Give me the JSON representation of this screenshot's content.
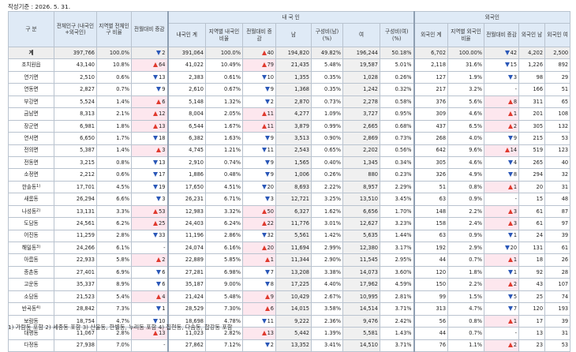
{
  "caption": "작성기준 : 2026. 5. 31.",
  "footnote": "1) 가람동 포함  2) 세종동 포함  3) 산울동, 한별동, 누리동 포함  4) 집현동, 다솜동, 합강동 포함",
  "headers": {
    "gubun": "구  분",
    "total_pop": "전체인구 (내국인+외국인)",
    "region_ratio": "지역별 전체인구 비율",
    "change": "전월대비 증감",
    "domestic_group": "내 국 인",
    "foreign_group": "외국인",
    "dom_total": "내국인 계",
    "dom_ratio": "지역별 내국인 비율",
    "dom_change": "전월대비 증 감",
    "dom_male": "남",
    "dom_male_pct": "구성비(남) (%)",
    "dom_female": "여",
    "dom_female_pct": "구성비(여) (%)",
    "for_total": "외국인 계",
    "for_ratio": "지역별 외국인 비율",
    "for_change": "전월대비 증감",
    "for_male": "외국인 남",
    "for_female": "외국인 여"
  },
  "rows": [
    {
      "name": "계",
      "total": "397,766",
      "ratio": "100.0%",
      "chg": {
        "dir": "down",
        "val": "2"
      },
      "dtot": "391,064",
      "dratio": "100.0%",
      "dchg": {
        "dir": "up",
        "val": "40"
      },
      "m": "194,820",
      "mp": "49.82%",
      "f": "196,244",
      "fp": "50.18%",
      "ftot": "6,702",
      "fratio": "100.00%",
      "fchg": {
        "dir": "down",
        "val": "42"
      },
      "fm": "4,202",
      "ff": "2,500"
    },
    {
      "name": "조치원읍",
      "total": "43,140",
      "ratio": "10.8%",
      "chg": {
        "dir": "up",
        "val": "64"
      },
      "dtot": "41,022",
      "dratio": "10.49%",
      "dchg": {
        "dir": "up",
        "val": "79"
      },
      "m": "21,435",
      "mp": "5.48%",
      "f": "19,587",
      "fp": "5.01%",
      "ftot": "2,118",
      "fratio": "31.6%",
      "fchg": {
        "dir": "down",
        "val": "15"
      },
      "fm": "1,226",
      "ff": "892"
    },
    {
      "name": "연기면",
      "total": "2,510",
      "ratio": "0.6%",
      "chg": {
        "dir": "down",
        "val": "13"
      },
      "dtot": "2,383",
      "dratio": "0.61%",
      "dchg": {
        "dir": "down",
        "val": "10"
      },
      "m": "1,355",
      "mp": "0.35%",
      "f": "1,028",
      "fp": "0.26%",
      "ftot": "127",
      "fratio": "1.9%",
      "fchg": {
        "dir": "down",
        "val": "3"
      },
      "fm": "98",
      "ff": "29"
    },
    {
      "name": "연동면",
      "total": "2,827",
      "ratio": "0.7%",
      "chg": {
        "dir": "down",
        "val": "9"
      },
      "dtot": "2,610",
      "dratio": "0.67%",
      "dchg": {
        "dir": "down",
        "val": "9"
      },
      "m": "1,368",
      "mp": "0.35%",
      "f": "1,242",
      "fp": "0.32%",
      "ftot": "217",
      "fratio": "3.2%",
      "fchg": {
        "dir": "none",
        "val": "-"
      },
      "fm": "166",
      "ff": "51"
    },
    {
      "name": "부강면",
      "total": "5,524",
      "ratio": "1.4%",
      "chg": {
        "dir": "up",
        "val": "6"
      },
      "dtot": "5,148",
      "dratio": "1.32%",
      "dchg": {
        "dir": "down",
        "val": "2"
      },
      "m": "2,870",
      "mp": "0.73%",
      "f": "2,278",
      "fp": "0.58%",
      "ftot": "376",
      "fratio": "5.6%",
      "fchg": {
        "dir": "up",
        "val": "8"
      },
      "fm": "311",
      "ff": "65"
    },
    {
      "name": "금남면",
      "total": "8,313",
      "ratio": "2.1%",
      "chg": {
        "dir": "up",
        "val": "12"
      },
      "dtot": "8,004",
      "dratio": "2.05%",
      "dchg": {
        "dir": "up",
        "val": "11"
      },
      "m": "4,277",
      "mp": "1.09%",
      "f": "3,727",
      "fp": "0.95%",
      "ftot": "309",
      "fratio": "4.6%",
      "fchg": {
        "dir": "up",
        "val": "1"
      },
      "fm": "201",
      "ff": "108"
    },
    {
      "name": "장군면",
      "total": "6,981",
      "ratio": "1.8%",
      "chg": {
        "dir": "up",
        "val": "13"
      },
      "dtot": "6,544",
      "dratio": "1.67%",
      "dchg": {
        "dir": "up",
        "val": "11"
      },
      "m": "3,879",
      "mp": "0.99%",
      "f": "2,665",
      "fp": "0.68%",
      "ftot": "437",
      "fratio": "6.5%",
      "fchg": {
        "dir": "up",
        "val": "2"
      },
      "fm": "305",
      "ff": "132"
    },
    {
      "name": "연서면",
      "total": "6,650",
      "ratio": "1.7%",
      "chg": {
        "dir": "down",
        "val": "18"
      },
      "dtot": "6,382",
      "dratio": "1.63%",
      "dchg": {
        "dir": "down",
        "val": "9"
      },
      "m": "3,513",
      "mp": "0.90%",
      "f": "2,869",
      "fp": "0.73%",
      "ftot": "268",
      "fratio": "4.0%",
      "fchg": {
        "dir": "down",
        "val": "9"
      },
      "fm": "215",
      "ff": "53"
    },
    {
      "name": "전의면",
      "total": "5,387",
      "ratio": "1.4%",
      "chg": {
        "dir": "up",
        "val": "3"
      },
      "dtot": "4,745",
      "dratio": "1.21%",
      "dchg": {
        "dir": "down",
        "val": "11"
      },
      "m": "2,543",
      "mp": "0.65%",
      "f": "2,202",
      "fp": "0.56%",
      "ftot": "642",
      "fratio": "9.6%",
      "fchg": {
        "dir": "up",
        "val": "14"
      },
      "fm": "519",
      "ff": "123"
    },
    {
      "name": "전동면",
      "total": "3,215",
      "ratio": "0.8%",
      "chg": {
        "dir": "down",
        "val": "13"
      },
      "dtot": "2,910",
      "dratio": "0.74%",
      "dchg": {
        "dir": "down",
        "val": "9"
      },
      "m": "1,565",
      "mp": "0.40%",
      "f": "1,345",
      "fp": "0.34%",
      "ftot": "305",
      "fratio": "4.6%",
      "fchg": {
        "dir": "down",
        "val": "4"
      },
      "fm": "265",
      "ff": "40"
    },
    {
      "name": "소정면",
      "total": "2,212",
      "ratio": "0.6%",
      "chg": {
        "dir": "down",
        "val": "17"
      },
      "dtot": "1,886",
      "dratio": "0.48%",
      "dchg": {
        "dir": "down",
        "val": "9"
      },
      "m": "1,006",
      "mp": "0.26%",
      "f": "880",
      "fp": "0.23%",
      "ftot": "326",
      "fratio": "4.9%",
      "fchg": {
        "dir": "down",
        "val": "8"
      },
      "fm": "294",
      "ff": "32"
    },
    {
      "name": "한솔동",
      "sup": "1)",
      "total": "17,701",
      "ratio": "4.5%",
      "chg": {
        "dir": "down",
        "val": "19"
      },
      "dtot": "17,650",
      "dratio": "4.51%",
      "dchg": {
        "dir": "down",
        "val": "20"
      },
      "m": "8,693",
      "mp": "2.22%",
      "f": "8,957",
      "fp": "2.29%",
      "ftot": "51",
      "fratio": "0.8%",
      "fchg": {
        "dir": "up",
        "val": "1"
      },
      "fm": "20",
      "ff": "31"
    },
    {
      "name": "새롬동",
      "total": "26,294",
      "ratio": "6.6%",
      "chg": {
        "dir": "down",
        "val": "3"
      },
      "dtot": "26,231",
      "dratio": "6.71%",
      "dchg": {
        "dir": "down",
        "val": "3"
      },
      "m": "12,721",
      "mp": "3.25%",
      "f": "13,510",
      "fp": "3.45%",
      "ftot": "63",
      "fratio": "0.9%",
      "fchg": {
        "dir": "none",
        "val": "-"
      },
      "fm": "15",
      "ff": "48"
    },
    {
      "name": "나성동",
      "sup": "2)",
      "total": "13,131",
      "ratio": "3.3%",
      "chg": {
        "dir": "up",
        "val": "53"
      },
      "dtot": "12,983",
      "dratio": "3.32%",
      "dchg": {
        "dir": "up",
        "val": "50"
      },
      "m": "6,327",
      "mp": "1.62%",
      "f": "6,656",
      "fp": "1.70%",
      "ftot": "148",
      "fratio": "2.2%",
      "fchg": {
        "dir": "up",
        "val": "3"
      },
      "fm": "61",
      "ff": "87"
    },
    {
      "name": "도담동",
      "total": "24,561",
      "ratio": "6.2%",
      "chg": {
        "dir": "up",
        "val": "25"
      },
      "dtot": "24,403",
      "dratio": "6.24%",
      "dchg": {
        "dir": "up",
        "val": "22"
      },
      "m": "11,776",
      "mp": "3.01%",
      "f": "12,627",
      "fp": "3.23%",
      "ftot": "158",
      "fratio": "2.4%",
      "fchg": {
        "dir": "up",
        "val": "3"
      },
      "fm": "61",
      "ff": "97"
    },
    {
      "name": "어진동",
      "total": "11,259",
      "ratio": "2.8%",
      "chg": {
        "dir": "down",
        "val": "33"
      },
      "dtot": "11,196",
      "dratio": "2.86%",
      "dchg": {
        "dir": "down",
        "val": "32"
      },
      "m": "5,561",
      "mp": "1.42%",
      "f": "5,635",
      "fp": "1.44%",
      "ftot": "63",
      "fratio": "0.9%",
      "fchg": {
        "dir": "down",
        "val": "1"
      },
      "fm": "24",
      "ff": "39"
    },
    {
      "name": "해밀동",
      "sup": "3)",
      "total": "24,266",
      "ratio": "6.1%",
      "chg": {
        "dir": "none",
        "val": "-"
      },
      "dtot": "24,074",
      "dratio": "6.16%",
      "dchg": {
        "dir": "up",
        "val": "20"
      },
      "m": "11,694",
      "mp": "2.99%",
      "f": "12,380",
      "fp": "3.17%",
      "ftot": "192",
      "fratio": "2.9%",
      "fchg": {
        "dir": "down",
        "val": "20"
      },
      "fm": "131",
      "ff": "61"
    },
    {
      "name": "아름동",
      "total": "22,933",
      "ratio": "5.8%",
      "chg": {
        "dir": "up",
        "val": "2"
      },
      "dtot": "22,889",
      "dratio": "5.85%",
      "dchg": {
        "dir": "up",
        "val": "1"
      },
      "m": "11,344",
      "mp": "2.90%",
      "f": "11,545",
      "fp": "2.95%",
      "ftot": "44",
      "fratio": "0.7%",
      "fchg": {
        "dir": "up",
        "val": "1"
      },
      "fm": "18",
      "ff": "26"
    },
    {
      "name": "종촌동",
      "total": "27,401",
      "ratio": "6.9%",
      "chg": {
        "dir": "down",
        "val": "6"
      },
      "dtot": "27,281",
      "dratio": "6.98%",
      "dchg": {
        "dir": "down",
        "val": "7"
      },
      "m": "13,208",
      "mp": "3.38%",
      "f": "14,073",
      "fp": "3.60%",
      "ftot": "120",
      "fratio": "1.8%",
      "fchg": {
        "dir": "down",
        "val": "1"
      },
      "fm": "92",
      "ff": "28"
    },
    {
      "name": "고운동",
      "total": "35,337",
      "ratio": "8.9%",
      "chg": {
        "dir": "down",
        "val": "6"
      },
      "dtot": "35,187",
      "dratio": "9.00%",
      "dchg": {
        "dir": "down",
        "val": "8"
      },
      "m": "17,225",
      "mp": "4.40%",
      "f": "17,962",
      "fp": "4.59%",
      "ftot": "150",
      "fratio": "2.2%",
      "fchg": {
        "dir": "up",
        "val": "2"
      },
      "fm": "43",
      "ff": "107"
    },
    {
      "name": "소담동",
      "total": "21,523",
      "ratio": "5.4%",
      "chg": {
        "dir": "up",
        "val": "4"
      },
      "dtot": "21,424",
      "dratio": "5.48%",
      "dchg": {
        "dir": "up",
        "val": "9"
      },
      "m": "10,429",
      "mp": "2.67%",
      "f": "10,995",
      "fp": "2.81%",
      "ftot": "99",
      "fratio": "1.5%",
      "fchg": {
        "dir": "down",
        "val": "5"
      },
      "fm": "25",
      "ff": "74"
    },
    {
      "name": "반곡동",
      "sup": "4)",
      "total": "28,842",
      "ratio": "7.3%",
      "chg": {
        "dir": "down",
        "val": "1"
      },
      "dtot": "28,529",
      "dratio": "7.30%",
      "dchg": {
        "dir": "up",
        "val": "6"
      },
      "m": "14,015",
      "mp": "3.58%",
      "f": "14,514",
      "fp": "3.71%",
      "ftot": "313",
      "fratio": "4.7%",
      "fchg": {
        "dir": "down",
        "val": "7"
      },
      "fm": "120",
      "ff": "193"
    },
    {
      "name": "보람동",
      "total": "18,754",
      "ratio": "4.7%",
      "chg": {
        "dir": "down",
        "val": "10"
      },
      "dtot": "18,698",
      "dratio": "4.78%",
      "dchg": {
        "dir": "down",
        "val": "11"
      },
      "m": "9,222",
      "mp": "2.36%",
      "f": "9,476",
      "fp": "2.42%",
      "ftot": "56",
      "fratio": "0.8%",
      "fchg": {
        "dir": "up",
        "val": "1"
      },
      "fm": "17",
      "ff": "39"
    },
    {
      "name": "대평동",
      "total": "11,067",
      "ratio": "2.8%",
      "chg": {
        "dir": "up",
        "val": "13"
      },
      "dtot": "11,023",
      "dratio": "2.82%",
      "dchg": {
        "dir": "up",
        "val": "13"
      },
      "m": "5,442",
      "mp": "1.39%",
      "f": "5,581",
      "fp": "1.43%",
      "ftot": "44",
      "fratio": "0.7%",
      "fchg": {
        "dir": "none",
        "val": "-"
      },
      "fm": "13",
      "ff": "31"
    },
    {
      "name": "다정동",
      "total": "27,938",
      "ratio": "7.0%",
      "chg": {
        "dir": "none",
        "val": "-"
      },
      "dtot": "27,862",
      "dratio": "7.12%",
      "dchg": {
        "dir": "down",
        "val": "2"
      },
      "m": "13,352",
      "mp": "3.41%",
      "f": "14,510",
      "fp": "3.71%",
      "ftot": "76",
      "fratio": "1.1%",
      "fchg": {
        "dir": "up",
        "val": "2"
      },
      "fm": "23",
      "ff": "53"
    }
  ],
  "colors": {
    "increase": "#e03a2e",
    "decrease": "#2b58b8",
    "header_bg": "#dfeaf6",
    "total_row_bg": "#eeeeee"
  }
}
